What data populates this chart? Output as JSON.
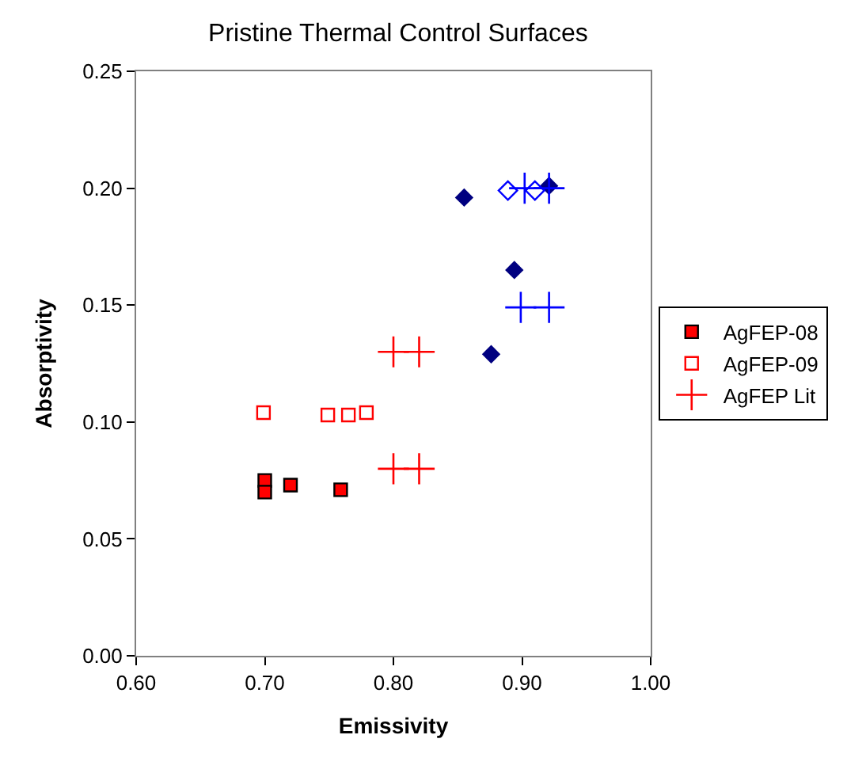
{
  "chart_data": {
    "type": "scatter",
    "title": "Pristine Thermal Control Surfaces",
    "xlabel": "Emissivity",
    "ylabel": "Absorptivity",
    "xlim": [
      0.6,
      1.0
    ],
    "xticks": [
      {
        "value": 0.6,
        "label": "0.60"
      },
      {
        "value": 0.7,
        "label": "0.70"
      },
      {
        "value": 0.8,
        "label": "0.80"
      },
      {
        "value": 0.9,
        "label": "0.90"
      },
      {
        "value": 1.0,
        "label": "1.00"
      }
    ],
    "ylim": [
      0,
      0.25
    ],
    "yticks": [
      {
        "value": 0,
        "label": "0.00"
      },
      {
        "value": 0.05,
        "label": "0.05"
      },
      {
        "value": 0.1,
        "label": "0.10"
      },
      {
        "value": 0.15,
        "label": "0.15"
      },
      {
        "value": 0.2,
        "label": "0.20"
      },
      {
        "value": 0.25,
        "label": "0.25"
      }
    ],
    "legend": "right",
    "series": [
      {
        "color": "#000080",
        "marker": "diamond",
        "x": [
          0.855,
          0.894,
          0.876,
          0.921
        ],
        "values": [
          0.196,
          0.165,
          0.129,
          0.201
        ]
      },
      {
        "color": "#0000ff",
        "marker": "diamond",
        "x": [
          0.889,
          0.91
        ],
        "values": [
          0.199,
          0.199
        ]
      },
      {
        "name": "AgFEP-08",
        "color": "#ff0000",
        "marker": "square",
        "x": [
          0.7,
          0.7,
          0.72,
          0.759
        ],
        "values": [
          0.075,
          0.07,
          0.073,
          0.071
        ]
      },
      {
        "name": "AgFEP-09",
        "color": "#ff0000",
        "marker": "square",
        "x": [
          0.699,
          0.749,
          0.765,
          0.779
        ],
        "values": [
          0.104,
          0.103,
          0.103,
          0.104
        ]
      },
      {
        "color": "#0000ff",
        "marker": "cross",
        "x": [
          0.902,
          0.921,
          0.899,
          0.921
        ],
        "values": [
          0.2,
          0.2,
          0.149,
          0.149
        ]
      },
      {
        "name": "AgFEP Lit",
        "color": "#ff0000",
        "marker": "cross",
        "x": [
          0.8,
          0.82,
          0.8,
          0.82
        ],
        "values": [
          0.13,
          0.13,
          0.08,
          0.08
        ]
      }
    ]
  }
}
